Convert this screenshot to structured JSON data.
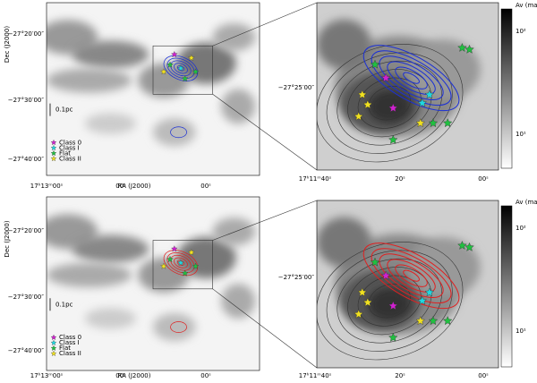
{
  "panels": [
    {
      "contour_color": "#1a2fd6",
      "dec_ticks": [
        "−27°20′00″",
        "−27°30′00″",
        "−27°40′00″"
      ],
      "ra_ticks": [
        "17ʰ13ᵐ00ˢ",
        "00ˢ",
        "00ˢ"
      ],
      "xlabel": "RA (J2000)",
      "ylabel": "Dec (J2000)",
      "scale_bar": "0.1pc",
      "legend": [
        "Class 0",
        "Class I",
        "Flat",
        "Class II"
      ]
    },
    {
      "contour_color": "#1a2fd6",
      "dec_ticks": [
        "−27°25′00″"
      ],
      "ra_ticks": [
        "17ʰ11ᵐ40ˢ",
        "20ˢ",
        "00ˢ"
      ],
      "colorbar_label": "Av (mag)",
      "colorbar_ticks": [
        "10²",
        "10¹"
      ]
    },
    {
      "contour_color": "#e02020",
      "dec_ticks": [
        "−27°20′00″",
        "−27°30′00″",
        "−27°40′00″"
      ],
      "ra_ticks": [
        "17ʰ13ᵐ00ˢ",
        "00ˢ",
        "00ˢ"
      ],
      "xlabel": "RA (J2000)",
      "ylabel": "Dec (J2000)",
      "scale_bar": "0.1pc",
      "legend": [
        "Class 0",
        "Class I",
        "Flat",
        "Class II"
      ]
    },
    {
      "contour_color": "#e02020",
      "dec_ticks": [
        "−27°25′00″"
      ],
      "ra_ticks": [
        "17ʰ11ᵐ40ˢ",
        "20ˢ",
        "00ˢ"
      ],
      "colorbar_label": "Av (mag)",
      "colorbar_ticks": [
        "10²",
        "10¹"
      ]
    }
  ]
}
